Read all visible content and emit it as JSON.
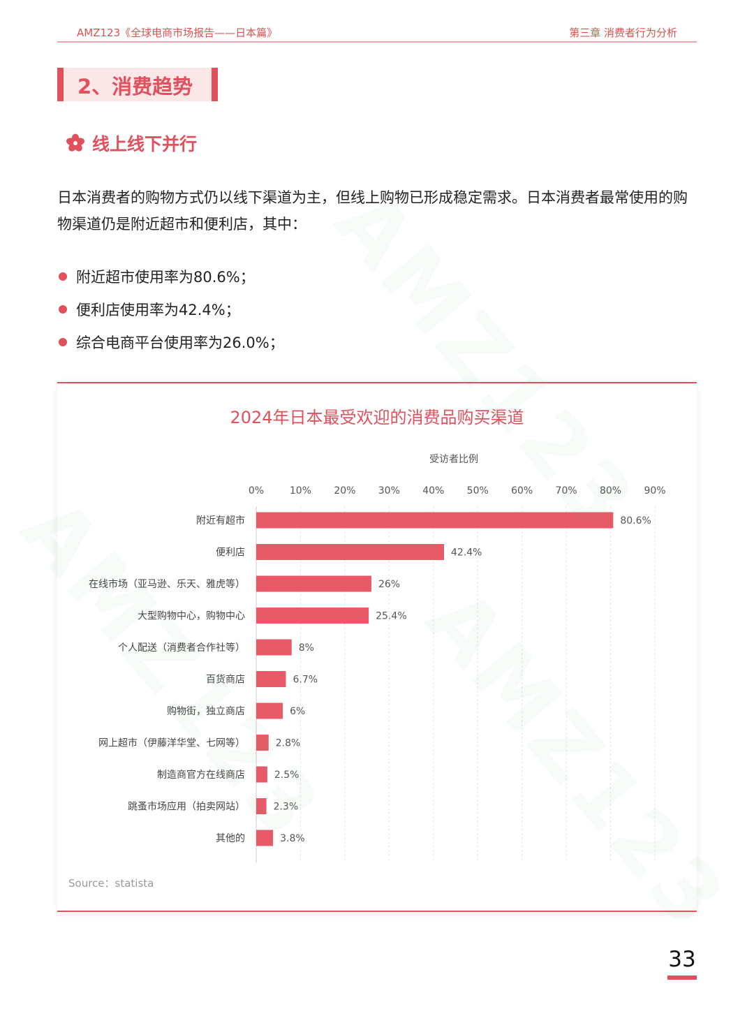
{
  "header": {
    "left": "AMZ123《全球电商市场报告——日本篇》",
    "right": "第三章 消费者行为分析"
  },
  "section": {
    "title": "2、消费趋势"
  },
  "subheading": {
    "text": "线上线下并行",
    "icon": "sakura-flower-icon"
  },
  "paragraph": "日本消费者的购物方式仍以线下渠道为主，但线上购物已形成稳定需求。日本消费者最常使用的购物渠道仍是附近超市和便利店，其中：",
  "bullets": [
    "附近超市使用率为80.6%；",
    "便利店使用率为42.4%；",
    "综合电商平台使用率为26.0%；"
  ],
  "watermark": "AMZ123",
  "colors": {
    "accent": "#e0505d",
    "bar": "#e85a68"
  },
  "chart_data": {
    "type": "bar",
    "orientation": "horizontal",
    "title": "2024年日本最受欢迎的消费品购买渠道",
    "xlabel": "受访者比例",
    "ylabel": "",
    "xlim": [
      0,
      90
    ],
    "ticks": [
      "0%",
      "10%",
      "20%",
      "30%",
      "40%",
      "50%",
      "60%",
      "70%",
      "80%",
      "90%"
    ],
    "grid": true,
    "categories": [
      "附近有超市",
      "便利店",
      "在线市场（亚马逊、乐天、雅虎等）",
      "大型购物中心，购物中心",
      "个人配送（消费者合作社等）",
      "百货商店",
      "购物街，独立商店",
      "网上超市（伊藤洋华堂、七网等）",
      "制造商官方在线商店",
      "跳蚤市场应用（拍卖网站）",
      "其他的"
    ],
    "values": [
      80.6,
      42.4,
      26,
      25.4,
      8,
      6.7,
      6,
      2.8,
      2.5,
      2.3,
      3.8
    ],
    "labels": [
      "80.6%",
      "42.4%",
      "26%",
      "25.4%",
      "8%",
      "6.7%",
      "6%",
      "2.8%",
      "2.5%",
      "2.3%",
      "3.8%"
    ],
    "source": "Source：statista"
  },
  "page_number": "33"
}
